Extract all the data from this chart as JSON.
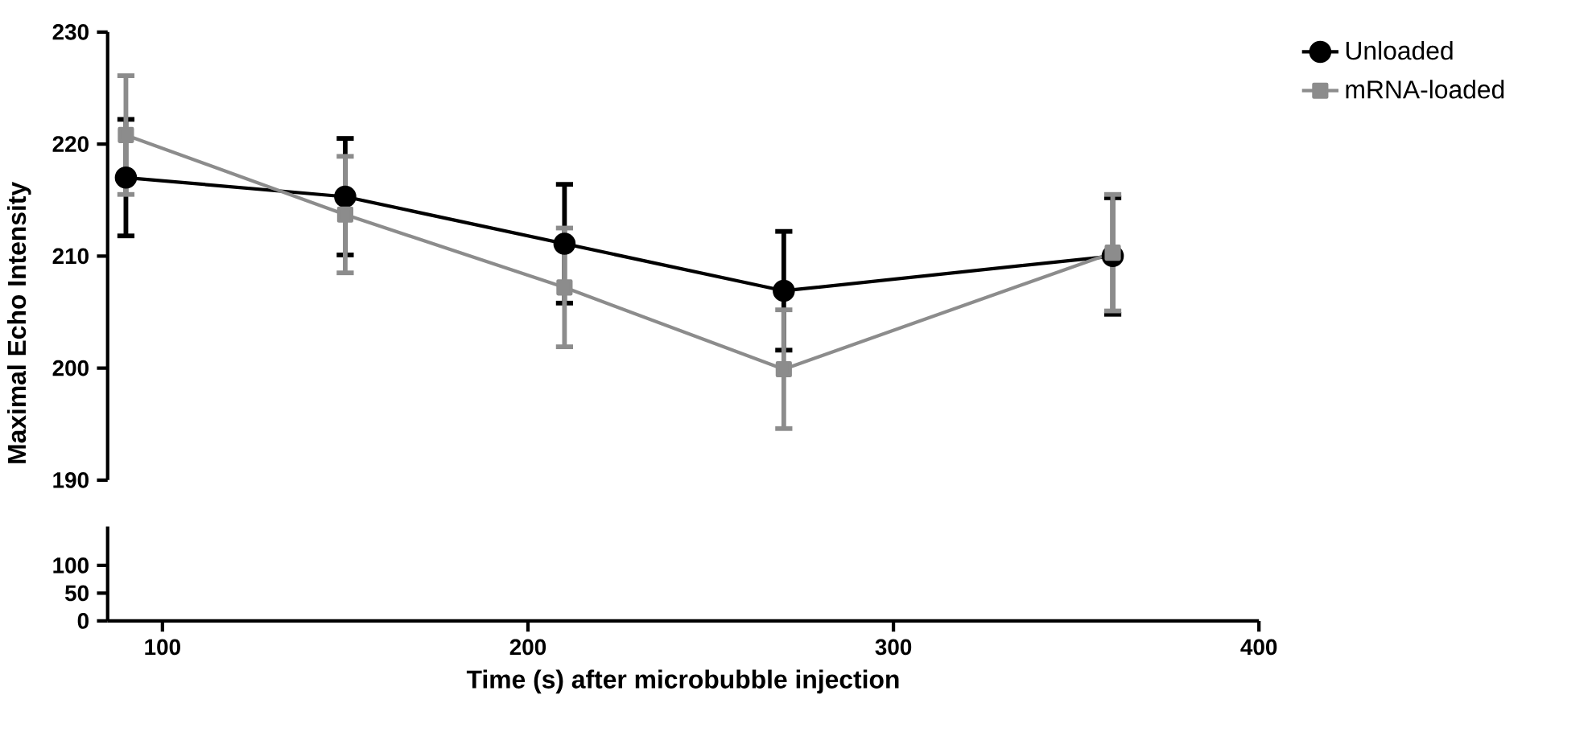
{
  "chart_data": [
    {
      "type": "line",
      "ylabel": "Maximal Echo Intensity",
      "xlim": [
        85,
        400
      ],
      "xticks": [
        100,
        200,
        300,
        400
      ],
      "ylim": [
        190,
        230
      ],
      "yticks": [
        190,
        200,
        210,
        220,
        230
      ],
      "tick_labels": "y",
      "legend": "top right",
      "grid": false,
      "line_style": "solid",
      "series": [
        {
          "name": "Unloaded",
          "color": "#000000",
          "marker": "circle",
          "x": [
            90,
            150,
            210,
            270,
            360
          ],
          "values": [
            217,
            215.3,
            211.1,
            206.9,
            210
          ],
          "errors": [
            5.2,
            5.2,
            5.3,
            5.3,
            5.2
          ]
        },
        {
          "name": "mRNA-loaded",
          "color": "#8c8c8c",
          "marker": "square",
          "x": [
            90,
            150,
            210,
            270,
            360
          ],
          "values": [
            220.8,
            213.7,
            207.2,
            199.9,
            210.3
          ],
          "errors": [
            5.3,
            5.2,
            5.3,
            5.3,
            5.2
          ]
        }
      ]
    },
    {
      "type": "line",
      "xlabel": "Time (s) after microbubble injection",
      "xlim": [
        85,
        400
      ],
      "xticks": [
        100,
        200,
        300,
        400
      ],
      "ylim": [
        0,
        170
      ],
      "yticks": [
        0,
        50,
        100
      ]
    }
  ]
}
